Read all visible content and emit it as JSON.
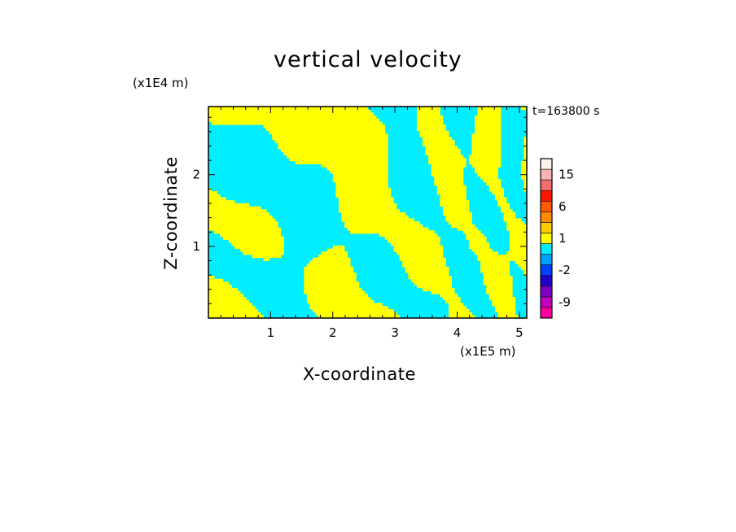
{
  "chart_data": {
    "type": "heatmap",
    "title": "vertical velocity",
    "xlabel": "X-coordinate",
    "ylabel": "Z-coordinate",
    "x_unit": "(x1E5 m)",
    "z_unit": "(x1E4 m)",
    "annotation": "t=163800 s",
    "xlim": [
      0,
      5.12
    ],
    "ylim": [
      0,
      2.95
    ],
    "x_ticks": [
      1,
      2,
      3,
      4,
      5
    ],
    "y_ticks": [
      1,
      2
    ],
    "dominant_colors": {
      "positive": "#ffff00",
      "negative": "#00eeff"
    },
    "colorbar": {
      "levels": [
        -12,
        -9,
        -6,
        -4,
        -2,
        -1,
        0,
        1,
        2,
        4,
        6,
        9,
        12,
        15,
        20
      ],
      "tick_labels": [
        "-9",
        "-2",
        "1",
        "6",
        "15"
      ],
      "tick_values": [
        -9,
        -2,
        1,
        6,
        15
      ],
      "colors": [
        "#ff00a0",
        "#c000c0",
        "#8000c8",
        "#2000c8",
        "#0040ff",
        "#00a0ff",
        "#00eeff",
        "#ffff00",
        "#ffcc00",
        "#ff8c00",
        "#ff5a00",
        "#ff1800",
        "#f07070",
        "#f8b4b4",
        "#fff0f0"
      ]
    }
  }
}
